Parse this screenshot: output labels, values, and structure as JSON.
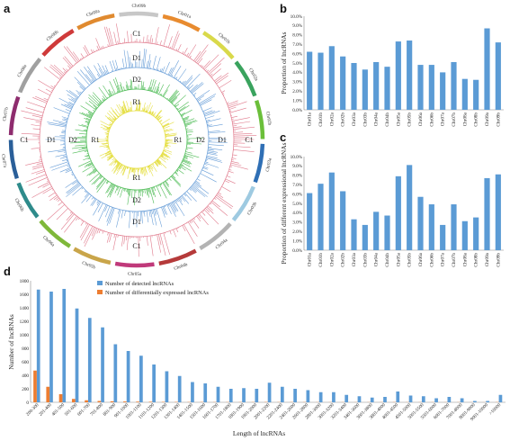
{
  "panels": {
    "a": "a",
    "b": "b",
    "c": "c",
    "d": "d"
  },
  "circos": {
    "chromosomes": [
      "Chr01a",
      "Chr01b",
      "Chr02a",
      "Chr02b",
      "Chr03a",
      "Chr03b",
      "Chr04a",
      "Chr04b",
      "Chr05a",
      "Chr05b",
      "Chr06a",
      "Chr06b",
      "Chr07a",
      "Chr07b",
      "Chr08a",
      "Chr08b",
      "Chr09a",
      "Chr09b"
    ],
    "chromosome_colors": [
      "#e88b2f",
      "#d9d94a",
      "#3aa35e",
      "#6bbf3a",
      "#2f6fb5",
      "#9ecae1",
      "#b3b3b3",
      "#b53a3a",
      "#c0397a",
      "#c9a54a",
      "#7fb83a",
      "#2e8b8b",
      "#2a5f99",
      "#8e2c6e",
      "#a0a0a0",
      "#cf3a3a",
      "#e08a2f",
      "#c7c7c7"
    ],
    "ring_labels": [
      {
        "ring": "C1",
        "color": "#e07a8c"
      },
      {
        "ring": "D1",
        "color": "#6a9fd8"
      },
      {
        "ring": "D2",
        "color": "#4dbb55"
      },
      {
        "ring": "R1",
        "color": "#e6e04a"
      }
    ]
  },
  "chart_data": [
    {
      "id": "b",
      "type": "bar",
      "categories": [
        "Chr01a",
        "Chr01b",
        "Chr02a",
        "Chr02b",
        "Chr03a",
        "Chr03b",
        "Chr04a",
        "Chr04b",
        "Chr05a",
        "Chr05b",
        "Chr06a",
        "Chr06b",
        "Chr07a",
        "Chr07b",
        "Chr08a",
        "Chr08b",
        "Chr09a",
        "Chr09b"
      ],
      "values": [
        6.2,
        6.1,
        6.8,
        5.7,
        5.0,
        4.3,
        5.1,
        4.6,
        7.3,
        7.4,
        4.8,
        4.8,
        4.0,
        5.1,
        3.3,
        3.2,
        8.7,
        7.2
      ],
      "ylabel": "Proportion of lncRNAs",
      "yticks": [
        "0.0%",
        "1.0%",
        "2.0%",
        "3.0%",
        "4.0%",
        "5.0%",
        "6.0%",
        "7.0%",
        "8.0%",
        "9.0%",
        "10.0%"
      ],
      "ylim": [
        0,
        10
      ],
      "color": "#5b9bd5"
    },
    {
      "id": "c",
      "type": "bar",
      "categories": [
        "Chr01a",
        "Chr01b",
        "Chr02a",
        "Chr02b",
        "Chr03a",
        "Chr03b",
        "Chr04a",
        "Chr04b",
        "Chr05a",
        "Chr05b",
        "Chr06a",
        "Chr06b",
        "Chr07a",
        "Chr07b",
        "Chr08a",
        "Chr08b",
        "Chr09a",
        "Chr09b"
      ],
      "values": [
        6.1,
        7.1,
        8.3,
        6.3,
        3.3,
        2.7,
        4.1,
        3.7,
        7.9,
        9.1,
        5.7,
        4.9,
        2.7,
        4.9,
        3.1,
        3.5,
        7.7,
        8.1
      ],
      "ylabel": "Proportion of different expressional lncRNAs",
      "yticks": [
        "0.0%",
        "1.0%",
        "2.0%",
        "3.0%",
        "4.0%",
        "5.0%",
        "6.0%",
        "7.0%",
        "8.0%",
        "9.0%",
        "10.0%"
      ],
      "ylim": [
        0,
        10
      ],
      "color": "#5b9bd5"
    },
    {
      "id": "d",
      "type": "bar",
      "categories": [
        "200-300",
        "201-400",
        "401-500",
        "501-600",
        "601-700",
        "701-800",
        "801-900",
        "901-1000",
        "1001-1100",
        "1101-1200",
        "1201-1300",
        "1301-1400",
        "1401-1500",
        "1501-1600",
        "1601-1700",
        "1701-1800",
        "1801-1900",
        "1901-2000",
        "2001-2200",
        "2201-2400",
        "2401-2600",
        "2601-2800",
        "2801-3000",
        "3001-3200",
        "3201-3400",
        "3401-3600",
        "3601-3800",
        "3801-4000",
        "4001-4500",
        "4501-5000",
        "5001-5500",
        "5501-6000",
        "6001-7000",
        "7001-8000",
        "8001-9000",
        "9001-10000",
        ">10000"
      ],
      "series": [
        {
          "name": "Number of detected lncRNAs",
          "color": "#5b9bd5",
          "values": [
            1670,
            1640,
            1680,
            1390,
            1250,
            1110,
            860,
            760,
            690,
            560,
            460,
            390,
            300,
            280,
            230,
            200,
            210,
            200,
            290,
            230,
            200,
            180,
            150,
            150,
            110,
            90,
            70,
            80,
            160,
            100,
            90,
            60,
            80,
            60,
            20,
            20,
            110
          ]
        },
        {
          "name": "Number of differentially expressed lncRNAs",
          "color": "#ed7d31",
          "values": [
            470,
            230,
            120,
            50,
            30,
            20,
            15,
            12,
            10,
            8,
            6,
            5,
            4,
            4,
            3,
            3,
            3,
            3,
            4,
            3,
            3,
            3,
            2,
            2,
            2,
            2,
            2,
            2,
            3,
            2,
            2,
            2,
            2,
            2,
            1,
            1,
            3
          ]
        }
      ],
      "ylabel": "Number of lncRNAs",
      "xlabel": "Length of lncRNAs",
      "yticks": [
        "0",
        "200",
        "400",
        "600",
        "800",
        "1000",
        "1200",
        "1400",
        "1600",
        "1800"
      ],
      "ylim": [
        0,
        1800
      ],
      "legend": "top-left"
    }
  ]
}
